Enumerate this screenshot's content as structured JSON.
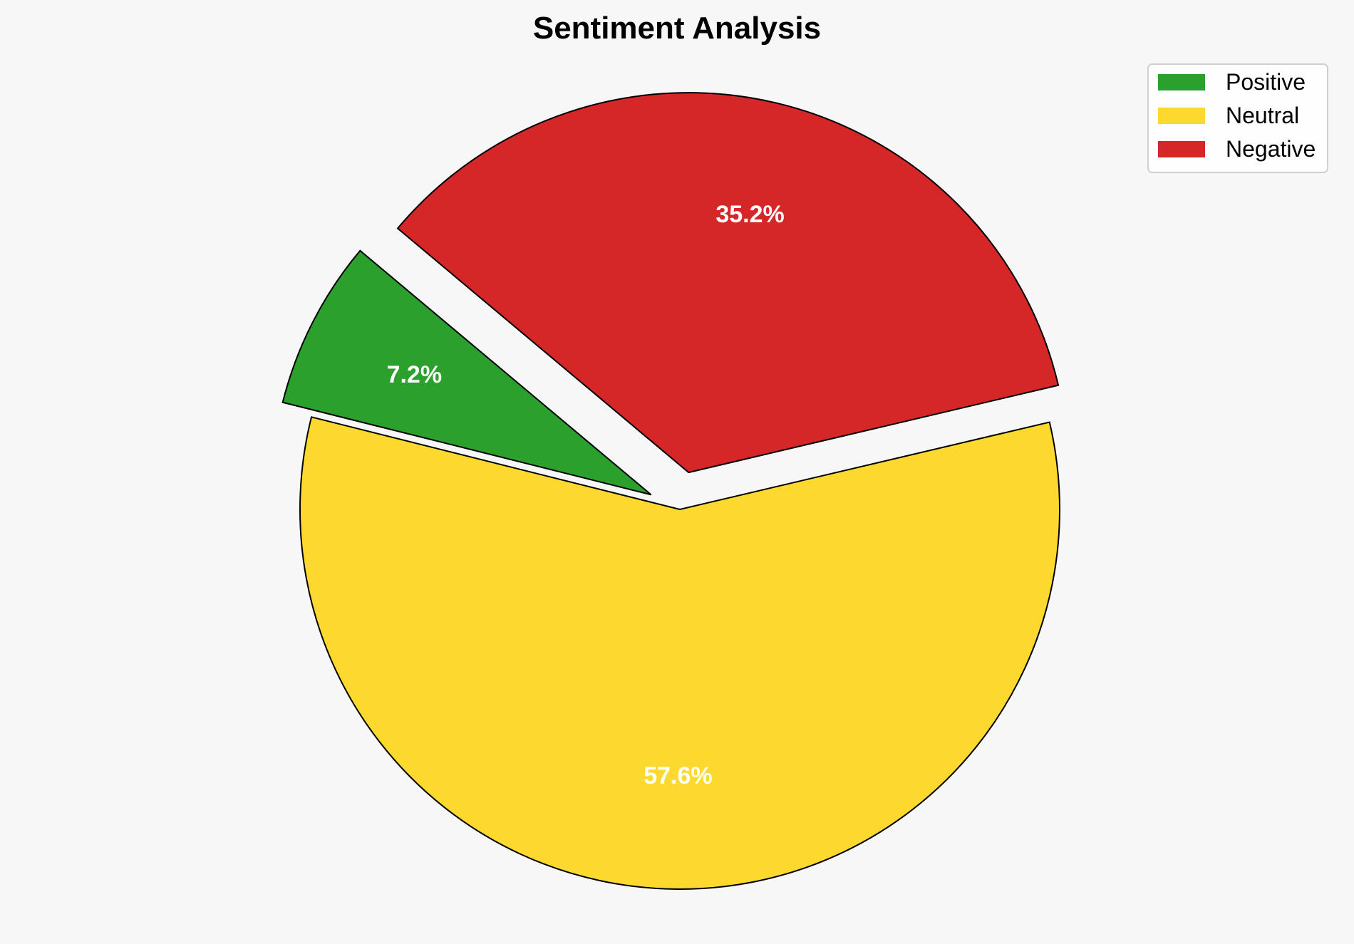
{
  "chart_data": {
    "type": "pie",
    "title": "Sentiment Analysis",
    "categories": [
      "Positive",
      "Neutral",
      "Negative"
    ],
    "values": [
      7.2,
      57.6,
      35.2
    ],
    "labels": [
      "7.2%",
      "57.6%",
      "35.2%"
    ],
    "colors": [
      "#2ca02c",
      "#fdd930",
      "#d62728"
    ],
    "explode": [
      0.085,
      0,
      0.1
    ],
    "start_angle_deg": 140,
    "direction": "counterclockwise",
    "legend_placement": "top-right"
  }
}
